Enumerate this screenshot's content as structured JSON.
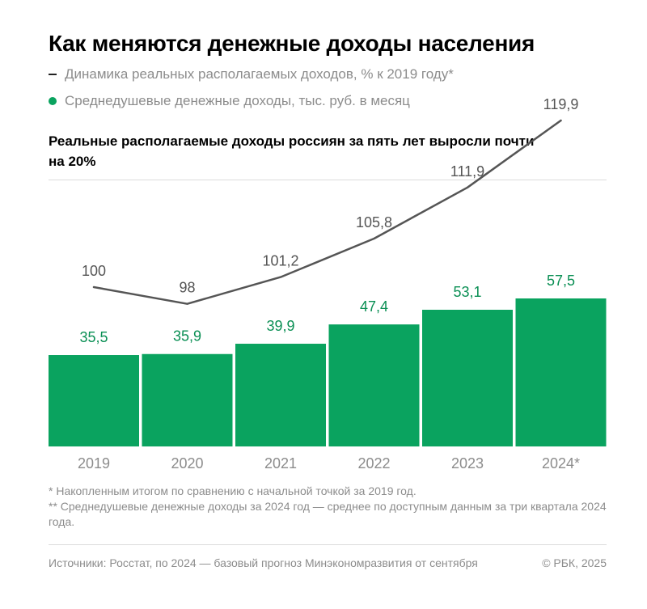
{
  "header": {
    "title": "Как меняются денежные доходы населения",
    "legend_line_label": "Динамика реальных располагаемых доходов, % к 2019 году*",
    "legend_bar_label": "Среднедушевые денежные доходы, тыс. руб. в месяц",
    "subtitle": "Реальные располагаемые доходы россиян за пять лет выросли почти на 20%"
  },
  "chart_data": {
    "type": "bar",
    "categories": [
      "2019",
      "2020",
      "2021",
      "2022",
      "2023",
      "2024*"
    ],
    "series": [
      {
        "name": "Среднедушевые денежные доходы, тыс. руб. в месяц",
        "kind": "bar",
        "values": [
          35.5,
          35.9,
          39.9,
          47.4,
          53.1,
          57.5
        ],
        "labels": [
          "35,5",
          "35,9",
          "39,9",
          "47,4",
          "53,1",
          "57,5"
        ],
        "color": "#0aa35f"
      },
      {
        "name": "Динамика реальных располагаемых доходов, % к 2019 году*",
        "kind": "line",
        "values": [
          100,
          98,
          101.2,
          105.8,
          111.9,
          119.9
        ],
        "labels": [
          "100",
          "98",
          "101,2",
          "105,8",
          "111,9",
          "119,9"
        ],
        "color": "#555555"
      }
    ],
    "ylim": [
      0,
      57.5
    ],
    "grid": false
  },
  "notes": {
    "note1": "* Накопленным итогом по сравнению с начальной точкой за 2019 год.",
    "note2": "** Среднедушевые денежные доходы за 2024 год — среднее по доступным данным за три квартала 2024 года."
  },
  "footer": {
    "source": "Источники: Росстат, по 2024 — базовый прогноз Минэкономразвития от сентября",
    "copyright": "© РБК, 2025"
  },
  "colors": {
    "bar": "#0aa35f",
    "bar_label": "#0a8f54",
    "line": "#555555",
    "line_label": "#555555",
    "axis_label": "#8c8c8c",
    "muted_text": "#8c8c8c"
  }
}
